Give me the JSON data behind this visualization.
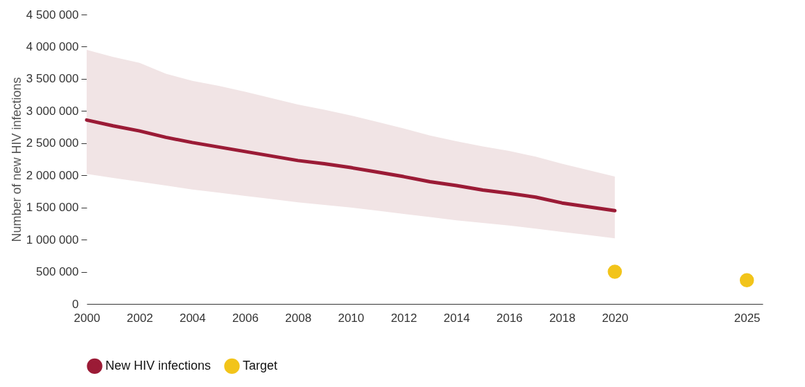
{
  "chart_data": {
    "type": "line",
    "ylabel": "Number of new HIV infections",
    "xlim": [
      2000,
      2025.6
    ],
    "xticks": [
      2000,
      2002,
      2004,
      2006,
      2008,
      2010,
      2012,
      2014,
      2016,
      2018,
      2020,
      2025
    ],
    "ylim": [
      0,
      4500000
    ],
    "yticks": [
      {
        "value": 0,
        "label": "0"
      },
      {
        "value": 500000,
        "label": "500 000"
      },
      {
        "value": 1000000,
        "label": "1 000 000"
      },
      {
        "value": 1500000,
        "label": "1 500 000"
      },
      {
        "value": 2000000,
        "label": "2 000 000"
      },
      {
        "value": 2500000,
        "label": "2 500 000"
      },
      {
        "value": 3000000,
        "label": "3 000 000"
      },
      {
        "value": 3500000,
        "label": "3 500 000"
      },
      {
        "value": 4000000,
        "label": "4 000 000"
      },
      {
        "value": 4500000,
        "label": "4 500 000"
      }
    ],
    "grid": false,
    "legend": "bottom left",
    "series": [
      {
        "name": "New HIV infections",
        "type": "line",
        "color": "#9b1b36",
        "x": [
          2000,
          2001,
          2002,
          2003,
          2004,
          2005,
          2006,
          2007,
          2008,
          2009,
          2010,
          2011,
          2012,
          2013,
          2014,
          2015,
          2016,
          2017,
          2018,
          2019,
          2020
        ],
        "values": [
          2860000,
          2770000,
          2690000,
          2590000,
          2510000,
          2440000,
          2370000,
          2300000,
          2230000,
          2180000,
          2120000,
          2050000,
          1980000,
          1900000,
          1840000,
          1770000,
          1720000,
          1660000,
          1570000,
          1510000,
          1450000
        ],
        "lower": [
          2020000,
          1960000,
          1900000,
          1840000,
          1780000,
          1730000,
          1680000,
          1630000,
          1580000,
          1540000,
          1500000,
          1450000,
          1400000,
          1350000,
          1300000,
          1260000,
          1220000,
          1170000,
          1120000,
          1070000,
          1020000
        ],
        "upper": [
          3950000,
          3840000,
          3750000,
          3580000,
          3470000,
          3390000,
          3300000,
          3200000,
          3100000,
          3020000,
          2930000,
          2830000,
          2730000,
          2620000,
          2530000,
          2450000,
          2380000,
          2290000,
          2180000,
          2080000,
          1980000
        ]
      },
      {
        "name": "Target",
        "type": "scatter",
        "color": "#f2c41a",
        "marker": "circle",
        "x": [
          2020,
          2025
        ],
        "values": [
          500000,
          370000
        ]
      }
    ]
  }
}
